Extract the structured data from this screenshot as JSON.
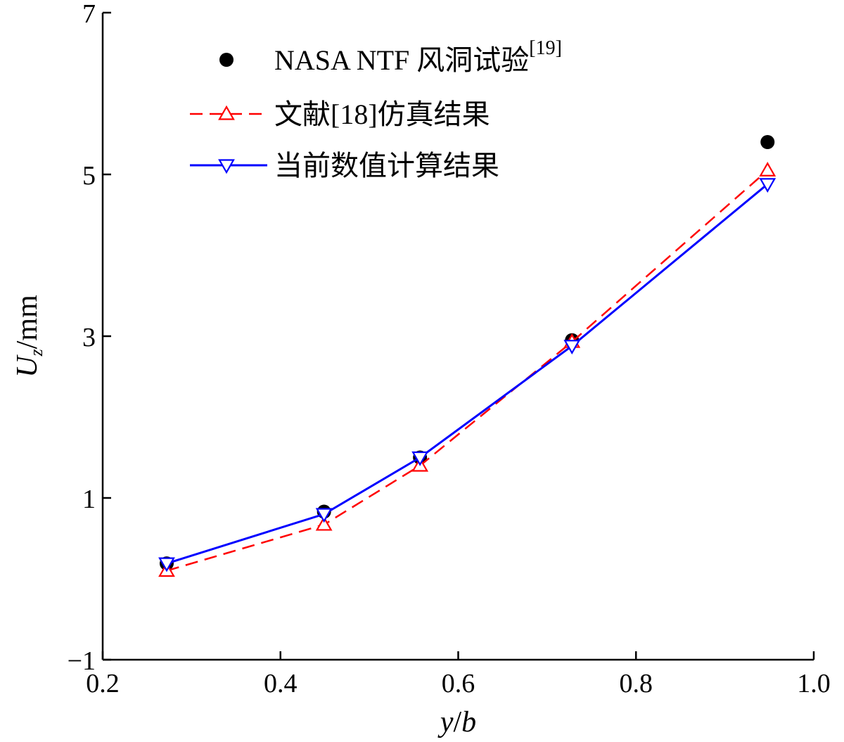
{
  "chart_data": {
    "type": "line",
    "title": "",
    "xlabel": {
      "var": "y",
      "sep": "/",
      "var2": "b"
    },
    "ylabel": {
      "var": "U",
      "sub": "z",
      "unit": "/mm"
    },
    "xlim": [
      0.2,
      1.0
    ],
    "ylim": [
      -1,
      7
    ],
    "xticks": [
      0.2,
      0.4,
      0.6,
      0.8,
      1.0
    ],
    "xtick_labels": [
      "0.2",
      "0.4",
      "0.6",
      "0.8",
      "1.0"
    ],
    "yticks": [
      -1,
      1,
      3,
      5,
      7
    ],
    "ytick_labels": [
      "−1",
      "1",
      "3",
      "5",
      "7"
    ],
    "grid": false,
    "legend_position": "top-left",
    "series": [
      {
        "name": "NASA NTF 风洞试验",
        "name_superscript": "[19]",
        "style": "markers",
        "marker": "filled-circle",
        "color": "#000000",
        "x": [
          0.272,
          0.449,
          0.557,
          0.728,
          0.948
        ],
        "y": [
          0.19,
          0.83,
          1.5,
          2.95,
          5.4
        ]
      },
      {
        "name": "文献[18]仿真结果",
        "style": "dashed",
        "marker": "triangle-up",
        "color": "#ff0000",
        "x": [
          0.272,
          0.449,
          0.557,
          0.728,
          0.948
        ],
        "y": [
          0.1,
          0.67,
          1.4,
          2.93,
          5.05
        ]
      },
      {
        "name": "当前数值计算结果",
        "style": "solid",
        "marker": "triangle-down",
        "color": "#0000ff",
        "x": [
          0.272,
          0.449,
          0.557,
          0.728,
          0.948
        ],
        "y": [
          0.19,
          0.8,
          1.5,
          2.88,
          4.88
        ]
      }
    ]
  }
}
